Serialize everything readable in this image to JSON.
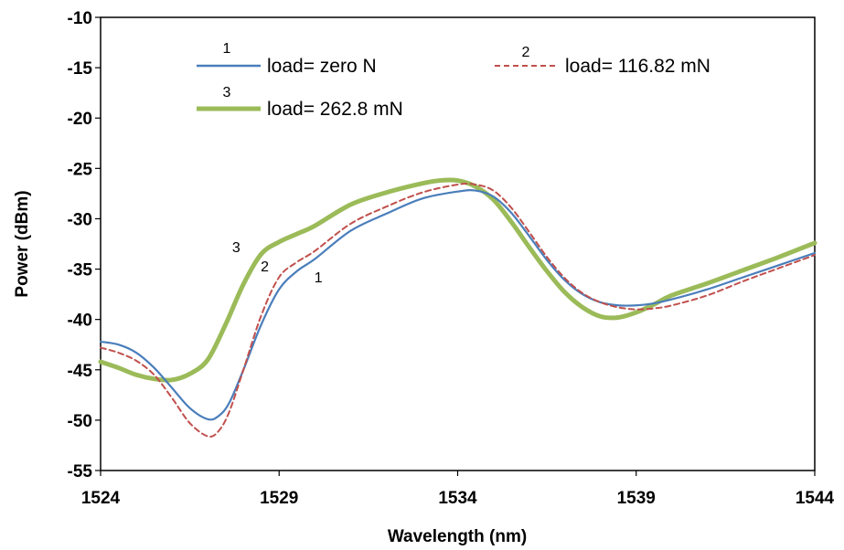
{
  "chart_data": {
    "type": "line",
    "xlabel": "Wavelength (nm)",
    "ylabel": "Power (dBm)",
    "xlim": [
      1524,
      1544
    ],
    "ylim": [
      -55,
      -10
    ],
    "xticks": [
      "1524",
      "1529",
      "1534",
      "1539",
      "1544"
    ],
    "yticks": [
      "-10",
      "-15",
      "-20",
      "-25",
      "-30",
      "-35",
      "-40",
      "-45",
      "-50",
      "-55"
    ],
    "grid": false,
    "legend_position": "top-inside",
    "series": [
      {
        "name": "load= zero N",
        "marker": "1",
        "color": "#4a7ebb",
        "style": "solid",
        "x": [
          1524,
          1524.5,
          1525,
          1525.5,
          1526,
          1526.5,
          1527,
          1527.3,
          1527.6,
          1528,
          1528.5,
          1529,
          1529.5,
          1530,
          1531,
          1532,
          1533,
          1534,
          1534.5,
          1535,
          1535.5,
          1536,
          1536.5,
          1537,
          1537.5,
          1538,
          1538.5,
          1539,
          1539.5,
          1540,
          1541,
          1542,
          1543,
          1544
        ],
        "y": [
          -42.2,
          -42.5,
          -43.3,
          -44.8,
          -46.8,
          -48.8,
          -49.9,
          -49.6,
          -48.3,
          -45,
          -40.5,
          -37,
          -35.2,
          -34,
          -31.2,
          -29.5,
          -28,
          -27.3,
          -27.2,
          -27.8,
          -29.4,
          -31.7,
          -34.1,
          -36.1,
          -37.5,
          -38.3,
          -38.6,
          -38.6,
          -38.4,
          -38,
          -37,
          -35.8,
          -34.6,
          -33.4
        ]
      },
      {
        "name": "load= 116.82 mN",
        "marker": "2",
        "color": "#c0504d",
        "style": "dashed",
        "x": [
          1524,
          1524.5,
          1525,
          1525.5,
          1526,
          1526.5,
          1527,
          1527.3,
          1527.6,
          1528,
          1528.5,
          1529,
          1529.5,
          1530,
          1531,
          1532,
          1533,
          1534,
          1534.5,
          1535,
          1535.5,
          1536,
          1536.5,
          1537,
          1537.5,
          1538,
          1538.5,
          1539,
          1539.5,
          1540,
          1541,
          1542,
          1543,
          1544
        ],
        "y": [
          -42.8,
          -43.3,
          -44.1,
          -45.5,
          -47.8,
          -50.3,
          -51.6,
          -51.1,
          -49.2,
          -45,
          -39.6,
          -35.8,
          -34.3,
          -33.2,
          -30.5,
          -28.8,
          -27.4,
          -26.6,
          -26.6,
          -27.2,
          -28.9,
          -31.3,
          -33.8,
          -35.9,
          -37.4,
          -38.3,
          -38.8,
          -39,
          -38.9,
          -38.6,
          -37.6,
          -36.2,
          -34.9,
          -33.6
        ]
      },
      {
        "name": "load= 262.8 mN",
        "marker": "3",
        "color": "#9bbb59",
        "style": "solid",
        "x": [
          1524,
          1524.5,
          1525,
          1525.5,
          1526,
          1526.5,
          1527,
          1527.5,
          1528,
          1528.5,
          1529,
          1529.5,
          1530,
          1531,
          1532,
          1533,
          1533.5,
          1534,
          1534.5,
          1535,
          1535.5,
          1536,
          1536.5,
          1537,
          1537.5,
          1538,
          1538.5,
          1539,
          1539.5,
          1540,
          1541,
          1542,
          1543,
          1544
        ],
        "y": [
          -44.2,
          -44.8,
          -45.5,
          -45.9,
          -46,
          -45.4,
          -44,
          -40.5,
          -36.5,
          -33.5,
          -32.3,
          -31.5,
          -30.7,
          -28.6,
          -27.4,
          -26.5,
          -26.2,
          -26.2,
          -26.8,
          -28.1,
          -30.3,
          -32.8,
          -35.2,
          -37.3,
          -38.8,
          -39.7,
          -39.8,
          -39.3,
          -38.5,
          -37.6,
          -36.4,
          -35.1,
          -33.8,
          -32.4
        ]
      }
    ],
    "curve_labels": [
      {
        "text": "1",
        "x": 1530.1,
        "y": -36.3
      },
      {
        "text": "2",
        "x": 1528.6,
        "y": -35.2
      },
      {
        "text": "3",
        "x": 1527.8,
        "y": -33.3
      }
    ]
  }
}
